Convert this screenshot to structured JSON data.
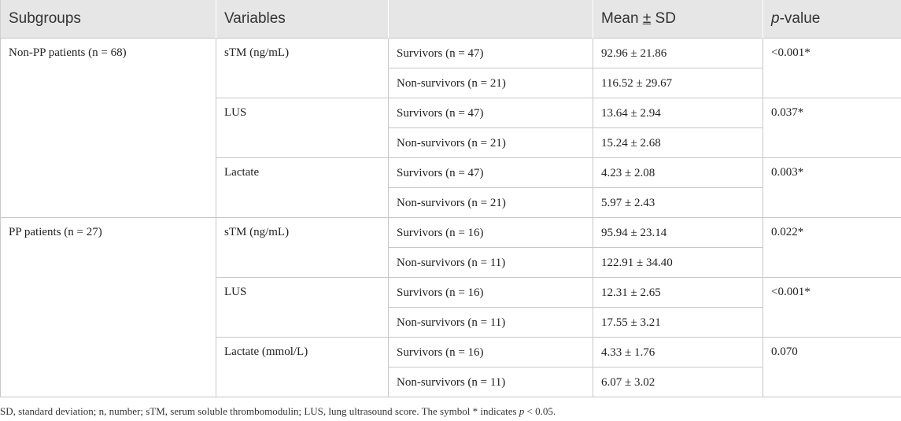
{
  "table": {
    "headers": {
      "subgroups": "Subgroups",
      "variables": "Variables",
      "empty": "",
      "mean_prefix": "Mean ",
      "mean_pm": "±",
      "mean_suffix": " SD",
      "p_italic": "p",
      "p_suffix": "-value"
    },
    "groups": [
      {
        "subgroup": "Non-PP patients (n = 68)",
        "variables": [
          {
            "name": "sTM (ng/mL)",
            "p": "<0.001*",
            "rows": [
              {
                "group": "Survivors (n = 47)",
                "mean_sd": "92.96 ± 21.86"
              },
              {
                "group": "Non-survivors (n = 21)",
                "mean_sd": "116.52 ± 29.67"
              }
            ]
          },
          {
            "name": "LUS",
            "p": "0.037*",
            "rows": [
              {
                "group": "Survivors (n = 47)",
                "mean_sd": "13.64 ± 2.94"
              },
              {
                "group": "Non-survivors (n = 21)",
                "mean_sd": "15.24 ± 2.68"
              }
            ]
          },
          {
            "name": "Lactate",
            "p": "0.003*",
            "rows": [
              {
                "group": "Survivors (n = 47)",
                "mean_sd": "4.23 ± 2.08"
              },
              {
                "group": "Non-survivors (n = 21)",
                "mean_sd": "5.97 ± 2.43"
              }
            ]
          }
        ]
      },
      {
        "subgroup": "PP patients (n = 27)",
        "variables": [
          {
            "name": "sTM (ng/mL)",
            "p": "0.022*",
            "rows": [
              {
                "group": "Survivors (n = 16)",
                "mean_sd": "95.94 ± 23.14"
              },
              {
                "group": "Non-survivors (n = 11)",
                "mean_sd": "122.91 ± 34.40"
              }
            ]
          },
          {
            "name": "LUS",
            "p": "<0.001*",
            "rows": [
              {
                "group": "Survivors (n = 16)",
                "mean_sd": "12.31 ± 2.65"
              },
              {
                "group": "Non-survivors (n = 11)",
                "mean_sd": "17.55 ± 3.21"
              }
            ]
          },
          {
            "name": "Lactate (mmol/L)",
            "p": "0.070",
            "rows": [
              {
                "group": "Survivors (n = 16)",
                "mean_sd": "4.33 ± 1.76"
              },
              {
                "group": "Non-survivors (n = 11)",
                "mean_sd": "6.07 ± 3.02"
              }
            ]
          }
        ]
      }
    ]
  },
  "footnote": {
    "text_before": "SD, standard deviation; n, number; sTM, serum soluble thrombomodulin; LUS, lung ultrasound score. The symbol * indicates ",
    "p_italic": "p",
    "text_after": " < 0.05."
  }
}
